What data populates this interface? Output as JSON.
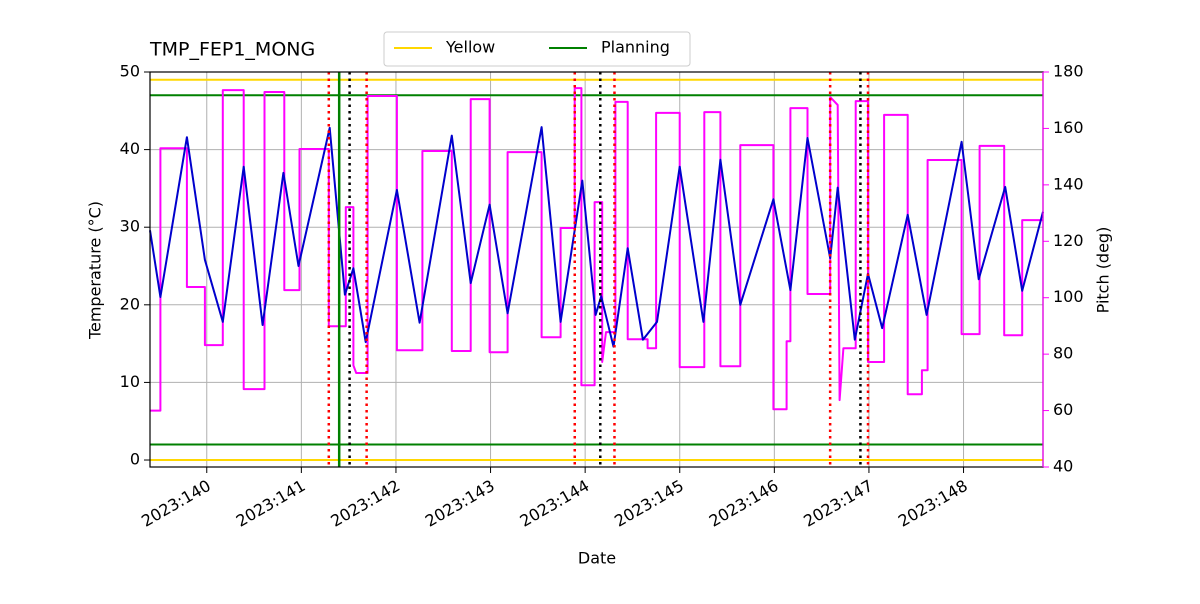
{
  "chart_data": {
    "type": "line",
    "title": "TMP_FEP1_MONG",
    "x_label": "Date",
    "y_label": "Temperature (°C)",
    "y2_label": "Pitch (deg)",
    "xlim": [
      139.4,
      148.84
    ],
    "xticks": [
      {
        "value": 140,
        "label": "2023:140"
      },
      {
        "value": 141,
        "label": "2023:141"
      },
      {
        "value": 142,
        "label": "2023:142"
      },
      {
        "value": 143,
        "label": "2023:143"
      },
      {
        "value": 144,
        "label": "2023:144"
      },
      {
        "value": 145,
        "label": "2023:145"
      },
      {
        "value": 146,
        "label": "2023:146"
      },
      {
        "value": 147,
        "label": "2023:147"
      },
      {
        "value": 148,
        "label": "2023:148"
      }
    ],
    "ylim": [
      -0.9,
      50
    ],
    "yticks": [
      0,
      10,
      20,
      30,
      40,
      50
    ],
    "y2lim": [
      40,
      180
    ],
    "y2ticks": [
      40,
      60,
      80,
      100,
      120,
      140,
      160,
      180
    ],
    "y2color": "#ff00ff",
    "grid": true,
    "legend": "top",
    "limits": [
      {
        "name": "Yellow",
        "color": "#ffd700",
        "values": [
          0,
          49
        ]
      },
      {
        "name": "Planning",
        "color": "#008000",
        "values": [
          2,
          47
        ]
      }
    ],
    "vlines": [
      {
        "color": "#008000",
        "style": "solid",
        "x": [
          141.4
        ]
      },
      {
        "color": "#ff0000",
        "style": "dotted",
        "x": [
          141.29,
          141.69,
          143.89,
          144.31,
          146.59,
          146.99
        ]
      },
      {
        "color": "#000000",
        "style": "dotted",
        "x": [
          141.51,
          144.16,
          146.91
        ]
      }
    ],
    "series": [
      {
        "color": "#0000cd",
        "axis": "y",
        "x": [
          139.4,
          139.51,
          139.79,
          139.98,
          140.17,
          140.39,
          140.59,
          140.81,
          140.97,
          141.3,
          141.46,
          141.55,
          141.68,
          142.01,
          142.25,
          142.59,
          142.79,
          142.99,
          143.18,
          143.54,
          143.74,
          143.97,
          144.11,
          144.17,
          144.3,
          144.45,
          144.61,
          144.76,
          145.0,
          145.25,
          145.43,
          145.64,
          145.99,
          146.17,
          146.35,
          146.59,
          146.67,
          146.85,
          146.99,
          147.14,
          147.41,
          147.61,
          147.98,
          148.16,
          148.44,
          148.62,
          148.84
        ],
        "values": [
          29.6,
          21.0,
          41.6,
          25.8,
          17.8,
          37.8,
          17.4,
          37.0,
          25.0,
          42.8,
          21.3,
          24.7,
          15.2,
          34.8,
          17.7,
          41.8,
          22.8,
          32.9,
          18.9,
          42.9,
          17.8,
          36.0,
          18.7,
          21.1,
          14.6,
          27.3,
          15.5,
          17.8,
          37.8,
          17.8,
          38.7,
          20.0,
          33.6,
          21.9,
          41.5,
          26.0,
          35.1,
          15.5,
          24.0,
          17.0,
          31.6,
          18.7,
          41.0,
          23.3,
          35.2,
          21.8,
          32.0
        ]
      },
      {
        "color": "#ff00ff",
        "axis": "y2",
        "x": [
          139.4,
          139.51,
          139.51,
          139.79,
          139.79,
          139.98,
          139.98,
          140.17,
          140.17,
          140.39,
          140.39,
          140.61,
          140.61,
          140.82,
          140.82,
          140.98,
          140.98,
          141.29,
          141.29,
          141.47,
          141.47,
          141.55,
          141.55,
          141.58,
          141.7,
          141.7,
          142.01,
          142.01,
          142.28,
          142.28,
          142.59,
          142.59,
          142.79,
          142.79,
          142.99,
          142.99,
          143.18,
          143.18,
          143.54,
          143.54,
          143.74,
          143.74,
          143.89,
          143.89,
          143.96,
          143.96,
          144.1,
          144.1,
          144.18,
          144.18,
          144.22,
          144.32,
          144.32,
          144.45,
          144.45,
          144.66,
          144.66,
          144.75,
          144.75,
          145.0,
          145.0,
          145.26,
          145.26,
          145.43,
          145.43,
          145.64,
          145.64,
          145.99,
          145.99,
          146.13,
          146.13,
          146.17,
          146.17,
          146.35,
          146.35,
          146.59,
          146.59,
          146.67,
          146.69,
          146.73,
          146.86,
          146.86,
          146.99,
          146.99,
          147.16,
          147.16,
          147.41,
          147.41,
          147.56,
          147.56,
          147.62,
          147.62,
          147.98,
          147.98,
          148.17,
          148.17,
          148.43,
          148.43,
          148.62,
          148.62,
          148.84
        ],
        "values": [
          60,
          60,
          153,
          153,
          103.8,
          103.8,
          83.2,
          83.2,
          173.6,
          173.6,
          67.6,
          67.6,
          172.9,
          172.9,
          102.7,
          102.7,
          152.7,
          152.7,
          89.9,
          89.9,
          132.1,
          132.1,
          76,
          73.3,
          73.3,
          171.5,
          171.5,
          81.4,
          81.4,
          152,
          152,
          81.1,
          81.1,
          170.4,
          170.4,
          80.7,
          80.7,
          151.6,
          151.6,
          86,
          86,
          124.7,
          124.7,
          174.3,
          174.3,
          69,
          69,
          133.9,
          133.9,
          77.2,
          87.8,
          87.8,
          169.4,
          169.4,
          85.3,
          85.3,
          82.1,
          82.1,
          165.5,
          165.5,
          75.4,
          75.4,
          165.8,
          165.8,
          75.7,
          75.7,
          154.1,
          154.1,
          60.5,
          60.5,
          84.6,
          84.6,
          167.2,
          167.2,
          101.3,
          101.3,
          171.1,
          168.3,
          63.7,
          82.1,
          82.1,
          169.7,
          169.7,
          77.2,
          77.2,
          164.8,
          164.8,
          65.8,
          65.8,
          74.3,
          74.3,
          148.8,
          148.8,
          87.1,
          87.1,
          153.8,
          153.8,
          86.7,
          86.7,
          127.5,
          127.5
        ]
      }
    ]
  }
}
